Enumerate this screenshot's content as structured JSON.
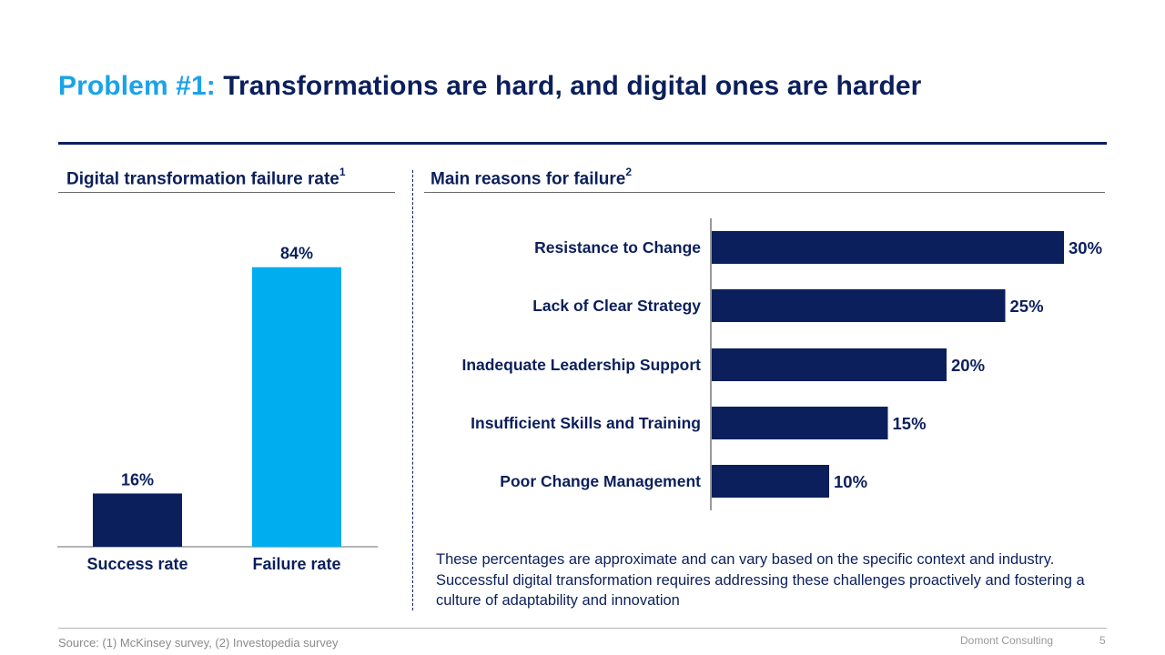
{
  "header": {
    "title_highlight": "Problem #1:",
    "title_rest": "Transformations are hard, and digital ones are harder"
  },
  "left_section": {
    "title": "Digital transformation failure rate",
    "footnote": "1"
  },
  "right_section": {
    "title": "Main reasons for failure",
    "footnote": "2"
  },
  "colors": {
    "navy": "#0b1f5c",
    "light_blue": "#00adef",
    "accent_text": "#1aa3e8"
  },
  "chart_data": [
    {
      "type": "bar",
      "orientation": "vertical",
      "categories": [
        "Success rate",
        "Failure rate"
      ],
      "values": [
        16,
        84
      ],
      "value_labels": [
        "16%",
        "84%"
      ],
      "colors": [
        "#0b1f5c",
        "#00adef"
      ],
      "title": "Digital transformation failure rate",
      "ylim": [
        0,
        100
      ]
    },
    {
      "type": "bar",
      "orientation": "horizontal",
      "categories": [
        "Resistance to Change",
        "Lack of Clear Strategy",
        "Inadequate Leadership Support",
        "Insufficient Skills and Training",
        "Poor Change Management"
      ],
      "values": [
        30,
        25,
        20,
        15,
        10
      ],
      "value_labels": [
        "30%",
        "25%",
        "20%",
        "15%",
        "10%"
      ],
      "color": "#0b1f5c",
      "title": "Main reasons for failure",
      "xlim": [
        0,
        30
      ]
    }
  ],
  "note": "These percentages are approximate and can vary based on the specific context and industry. Successful digital transformation requires addressing these challenges proactively and fostering a culture of adaptability and innovation",
  "footer": {
    "source": "Source: (1) McKinsey survey, (2) Investopedia survey",
    "company": "Domont Consulting",
    "page_number": "5"
  }
}
